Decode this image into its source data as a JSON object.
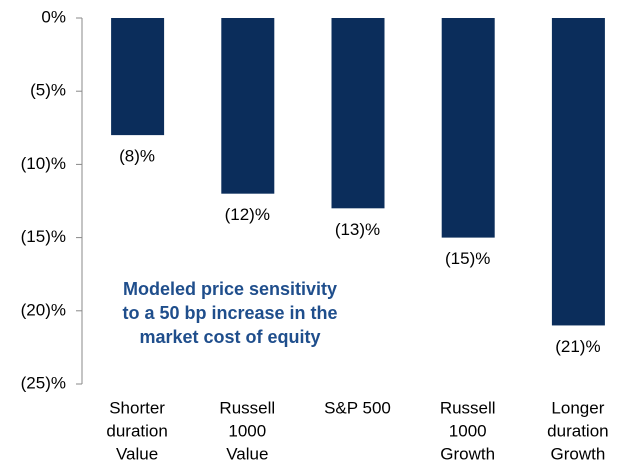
{
  "chart_data": {
    "type": "bar",
    "categories": [
      [
        "Shorter",
        "duration",
        "Value"
      ],
      [
        "Russell",
        "1000",
        "Value"
      ],
      [
        "S&P 500"
      ],
      [
        "Russell",
        "1000",
        "Growth"
      ],
      [
        "Longer",
        "duration",
        "Growth"
      ]
    ],
    "values": [
      -8,
      -12,
      -13,
      -15,
      -21
    ],
    "value_labels": [
      "(8)%",
      "(12)%",
      "(13)%",
      "(15)%",
      "(21)%"
    ],
    "color": "#0b2d5b",
    "ylim": [
      -25,
      0
    ],
    "yticks": [
      {
        "value": 0,
        "label": "0%"
      },
      {
        "value": -5,
        "label": "(5)%"
      },
      {
        "value": -10,
        "label": "(10)%"
      },
      {
        "value": -15,
        "label": "(15)%"
      },
      {
        "value": -20,
        "label": "(20)%"
      },
      {
        "value": -25,
        "label": "(25)%"
      }
    ],
    "annotation": [
      "Modeled price sensitivity",
      "to a 50 bp increase in the",
      "market cost of equity"
    ]
  }
}
